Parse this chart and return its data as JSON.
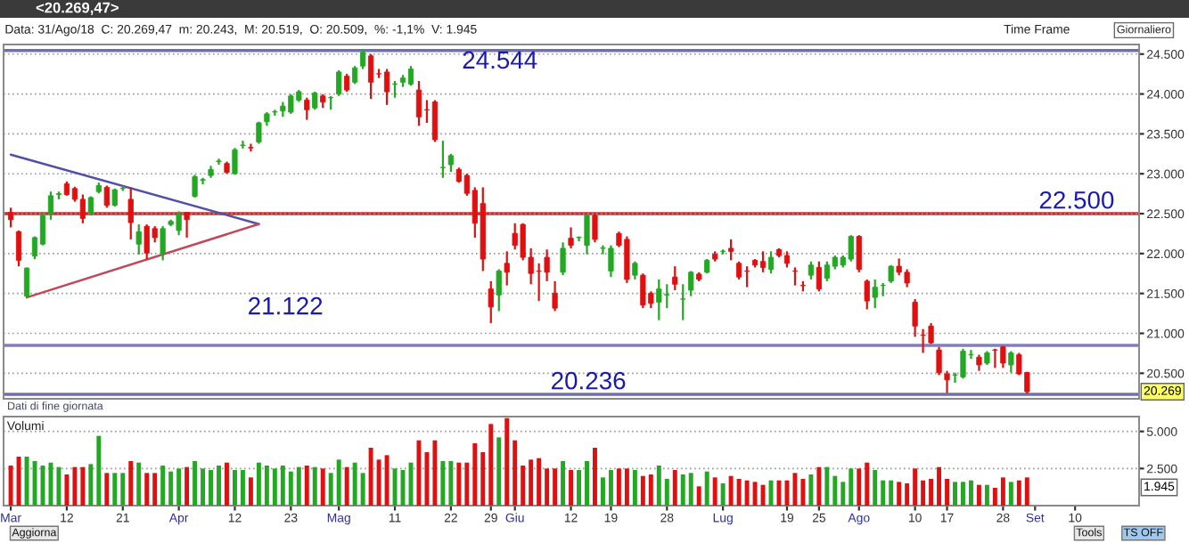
{
  "chart_data": [
    {
      "type": "candlestick",
      "title": "<20.269,47>",
      "subtitle": "Data: 31/Ago/18  C: 20.269,47  m: 20.243,  M: 20.519,  O: 20.509,  %: -1,1%  V: 1.945",
      "categories": [
        null,
        null,
        null,
        null,
        null,
        null,
        null,
        null,
        null,
        null,
        null,
        null,
        null,
        null,
        null,
        null,
        null,
        null,
        null,
        null,
        null,
        null,
        null,
        null,
        null,
        null,
        null,
        null,
        null,
        null,
        null,
        null,
        null,
        null,
        null,
        null,
        null,
        null,
        null,
        null,
        null,
        null,
        null,
        null,
        null,
        null,
        null,
        null,
        null,
        null,
        null,
        null,
        null,
        null,
        null,
        null,
        null,
        null,
        null,
        null,
        null,
        null,
        null,
        null,
        null,
        null,
        null,
        null,
        null,
        null,
        null,
        null,
        null,
        null,
        null,
        null,
        null,
        null,
        null,
        null,
        null,
        null,
        null,
        null,
        null,
        null,
        null,
        null,
        null,
        null,
        null,
        null,
        null,
        null,
        null,
        null,
        null,
        null,
        null,
        null,
        null,
        null,
        null,
        null,
        null,
        null,
        null,
        null,
        null,
        null,
        null,
        null,
        null,
        null,
        null,
        null,
        null,
        null,
        null,
        null,
        null,
        null,
        null,
        null,
        null,
        null,
        null,
        null,
        null,
        null,
        null,
        null,
        null,
        null,
        null,
        null,
        null,
        null,
        null,
        null,
        null,
        null
      ],
      "ohlc": [
        [
          22515,
          22575,
          22328,
          22425
        ],
        [
          22275,
          22290,
          21841,
          21916
        ],
        [
          21466,
          21826,
          21451,
          21818
        ],
        [
          21968,
          22215,
          21930,
          22200
        ],
        [
          22118,
          22515,
          22103,
          22477
        ],
        [
          22500,
          22777,
          22425,
          22725
        ],
        [
          22740,
          22777,
          22680,
          22750
        ],
        [
          22874,
          22904,
          22725,
          22740
        ],
        [
          22815,
          22837,
          22650,
          22680
        ],
        [
          22680,
          22740,
          22380,
          22440
        ],
        [
          22515,
          22717,
          22477,
          22702
        ],
        [
          22777,
          22889,
          22755,
          22852
        ],
        [
          22830,
          22852,
          22575,
          22605
        ],
        [
          22605,
          22815,
          22590,
          22800
        ],
        [
          22815,
          22845,
          22785,
          22820
        ],
        [
          22680,
          22830,
          22178,
          22388
        ],
        [
          22118,
          22365,
          21990,
          22275
        ],
        [
          22343,
          22365,
          21930,
          22006
        ],
        [
          22313,
          22343,
          22140,
          22200
        ],
        [
          22006,
          22343,
          21916,
          22313
        ],
        [
          22365,
          22425,
          22343,
          22403
        ],
        [
          22290,
          22530,
          22230,
          22492
        ],
        [
          22515,
          22515,
          22200,
          22425
        ],
        [
          22717,
          22987,
          22702,
          22964
        ],
        [
          22920,
          22950,
          22867,
          22927
        ],
        [
          22979,
          23099,
          22949,
          23054
        ],
        [
          23152,
          23189,
          23114,
          23160
        ],
        [
          23129,
          23152,
          23002,
          23017
        ],
        [
          23002,
          23324,
          22987,
          23301
        ],
        [
          23354,
          23414,
          23316,
          23360
        ],
        [
          23330,
          23376,
          23279,
          23324
        ],
        [
          23399,
          23653,
          23376,
          23638
        ],
        [
          23653,
          23773,
          23601,
          23751
        ],
        [
          23773,
          23803,
          23728,
          23778
        ],
        [
          23788,
          23900,
          23713,
          23848
        ],
        [
          23773,
          23998,
          23751,
          23975
        ],
        [
          23923,
          24050,
          23900,
          24028
        ],
        [
          23923,
          23953,
          23676,
          23803
        ],
        [
          23826,
          24028,
          23803,
          24013
        ],
        [
          23975,
          23998,
          23826,
          23900
        ],
        [
          23953,
          23975,
          23803,
          23955
        ],
        [
          23998,
          24297,
          23975,
          24275
        ],
        [
          24223,
          24253,
          24028,
          24050
        ],
        [
          24148,
          24350,
          24125,
          24327
        ],
        [
          24350,
          24552,
          24313,
          24522
        ],
        [
          24477,
          24500,
          23938,
          24148
        ],
        [
          24253,
          24313,
          24200,
          24252
        ],
        [
          24275,
          24313,
          23863,
          24028
        ],
        [
          24125,
          24163,
          23953,
          24126
        ],
        [
          24148,
          24238,
          24088,
          24200
        ],
        [
          24125,
          24350,
          24103,
          24313
        ],
        [
          24050,
          24163,
          23601,
          23713
        ],
        [
          23803,
          23923,
          23638,
          23800
        ],
        [
          23900,
          23923,
          23399,
          23428
        ],
        [
          23077,
          23414,
          22949,
          23080
        ],
        [
          23114,
          23249,
          23024,
          23227
        ],
        [
          23054,
          23077,
          22889,
          22904
        ],
        [
          22979,
          23002,
          22725,
          22755
        ],
        [
          22792,
          22830,
          22200,
          22380
        ],
        [
          22627,
          22830,
          21781,
          21931
        ],
        [
          21556,
          21654,
          21129,
          21331
        ],
        [
          21481,
          21803,
          21279,
          21781
        ],
        [
          21878,
          22028,
          21601,
          21766
        ],
        [
          22253,
          22380,
          22051,
          22103
        ],
        [
          22365,
          22380,
          21916,
          21953
        ],
        [
          21953,
          22066,
          21616,
          21751
        ],
        [
          21781,
          21878,
          21406,
          21780
        ],
        [
          21953,
          22051,
          21654,
          21766
        ],
        [
          21504,
          21654,
          21279,
          21316
        ],
        [
          21766,
          22140,
          21729,
          22066
        ],
        [
          22193,
          22328,
          22066,
          22103
        ],
        [
          22200,
          22215,
          22155,
          22205
        ],
        [
          22103,
          22492,
          21991,
          22477
        ],
        [
          22477,
          22492,
          22140,
          22178
        ],
        [
          22066,
          22103,
          21991,
          22070
        ],
        [
          21781,
          22103,
          21706,
          22066
        ],
        [
          22253,
          22275,
          22081,
          22103
        ],
        [
          22178,
          22215,
          21631,
          21676
        ],
        [
          21729,
          21901,
          21676,
          21878
        ],
        [
          21729,
          21751,
          21316,
          21354
        ],
        [
          21504,
          21526,
          21316,
          21376
        ],
        [
          21391,
          21676,
          21166,
          21556
        ],
        [
          21481,
          21616,
          21316,
          21486
        ],
        [
          21706,
          21841,
          21541,
          21616
        ],
        [
          21429,
          21616,
          21166,
          21431
        ],
        [
          21541,
          21781,
          21466,
          21766
        ],
        [
          21743,
          21766,
          21653,
          21676
        ],
        [
          21766,
          21931,
          21751,
          21916
        ],
        [
          21991,
          22028,
          21901,
          21931
        ],
        [
          22028,
          22051,
          21991,
          22030
        ],
        [
          22066,
          22178,
          21916,
          22028
        ],
        [
          21878,
          21901,
          21676,
          21706
        ],
        [
          21781,
          21841,
          21579,
          21780
        ],
        [
          21916,
          21931,
          21826,
          21856
        ],
        [
          21901,
          22028,
          21766,
          21826
        ],
        [
          21803,
          22028,
          21751,
          21953
        ],
        [
          22051,
          22066,
          21953,
          21976
        ],
        [
          21976,
          22028,
          21826,
          21878
        ],
        [
          21781,
          21826,
          21601,
          21780
        ],
        [
          21601,
          21654,
          21526,
          21598
        ],
        [
          21729,
          21901,
          21676,
          21856
        ],
        [
          21826,
          21901,
          21526,
          21556
        ],
        [
          21691,
          21901,
          21654,
          21856
        ],
        [
          21841,
          21976,
          21803,
          21953
        ],
        [
          21856,
          21976,
          21826,
          21953
        ],
        [
          21931,
          22230,
          21901,
          22215
        ],
        [
          22215,
          22230,
          21766,
          21803
        ],
        [
          21654,
          21676,
          21301,
          21406
        ],
        [
          21451,
          21676,
          21316,
          21578
        ],
        [
          21601,
          21631,
          21466,
          21603
        ],
        [
          21654,
          21856,
          21631,
          21841
        ],
        [
          21841,
          21938,
          21729,
          21766
        ],
        [
          21766,
          21803,
          21579,
          21631
        ],
        [
          21391,
          21429,
          20957,
          21092
        ],
        [
          20980,
          21054,
          20755,
          20977
        ],
        [
          21092,
          21129,
          20867,
          20882
        ],
        [
          20792,
          20830,
          20477,
          20507
        ],
        [
          20492,
          20530,
          20253,
          20418
        ],
        [
          20478,
          20507,
          20380,
          20480
        ],
        [
          20455,
          20807,
          20433,
          20777
        ],
        [
          20732,
          20792,
          20680,
          20735
        ],
        [
          20702,
          20732,
          20530,
          20605
        ],
        [
          20627,
          20777,
          20605,
          20755
        ],
        [
          20792,
          20807,
          20567,
          20790
        ],
        [
          20830,
          20845,
          20567,
          20627
        ],
        [
          20605,
          20777,
          20507,
          20755
        ],
        [
          20732,
          20755,
          20477,
          20492
        ],
        [
          20509,
          20519,
          20243,
          20269
        ],
        null,
        null,
        null,
        null,
        null,
        null,
        null,
        null,
        null,
        null,
        null,
        null,
        null,
        null
      ],
      "colors": [
        "#e01010",
        "#e01010",
        "#22a822",
        "#22a822",
        "#22a822",
        "#22a822",
        "#22a822",
        "#e01010",
        "#e01010",
        "#e01010",
        "#22a822",
        "#22a822",
        "#e01010",
        "#22a822",
        "#22a822",
        "#e01010",
        "#22a822",
        "#e01010",
        "#e01010",
        "#22a822",
        "#22a822",
        "#22a822",
        "#e01010",
        "#22a822",
        "#22a822",
        "#22a822",
        "#22a822",
        "#e01010",
        "#22a822",
        "#22a822",
        "#e01010",
        "#22a822",
        "#22a822",
        "#22a822",
        "#22a822",
        "#22a822",
        "#22a822",
        "#e01010",
        "#22a822",
        "#e01010",
        "#22a822",
        "#22a822",
        "#e01010",
        "#22a822",
        "#22a822",
        "#e01010",
        "#e01010",
        "#e01010",
        "#22a822",
        "#22a822",
        "#22a822",
        "#e01010",
        "#e01010",
        "#e01010",
        "#22a822",
        "#22a822",
        "#e01010",
        "#e01010",
        "#e01010",
        "#e01010",
        "#e01010",
        "#22a822",
        "#e01010",
        "#e01010",
        "#e01010",
        "#e01010",
        "#e01010",
        "#e01010",
        "#e01010",
        "#22a822",
        "#e01010",
        "#22a822",
        "#22a822",
        "#e01010",
        "#22a822",
        "#22a822",
        "#e01010",
        "#e01010",
        "#22a822",
        "#e01010",
        "#e01010",
        "#22a822",
        "#22a822",
        "#e01010",
        "#22a822",
        "#22a822",
        "#e01010",
        "#22a822",
        "#e01010",
        "#22a822",
        "#e01010",
        "#e01010",
        "#e01010",
        "#e01010",
        "#e01010",
        "#22a822",
        "#e01010",
        "#e01010",
        "#e01010",
        "#e01010",
        "#22a822",
        "#e01010",
        "#22a822",
        "#22a822",
        "#22a822",
        "#22a822",
        "#e01010",
        "#e01010",
        "#22a822",
        "#22a822",
        "#22a822",
        "#e01010",
        "#e01010",
        "#e01010",
        "#e01010",
        "#e01010",
        "#e01010",
        "#e01010",
        "#22a822",
        "#22a822",
        "#22a822",
        "#e01010",
        "#22a822",
        "#e01010",
        "#e01010",
        "#22a822",
        "#e01010",
        "#e01010",
        null,
        null,
        null,
        null,
        null,
        null,
        null,
        null,
        null,
        null,
        null,
        null,
        null,
        null
      ],
      "series": [
        {
          "type": "line",
          "color": "#5050a8",
          "values": [
            23240,
            null,
            null,
            null,
            null,
            null,
            null,
            null,
            null,
            null,
            null,
            null,
            null,
            null,
            null,
            null,
            null,
            null,
            null,
            null,
            null,
            null,
            null,
            null,
            null,
            null,
            null,
            null,
            null,
            null,
            null,
            22370,
            null,
            null,
            null,
            null,
            null,
            null,
            null,
            null,
            null,
            null,
            null,
            null,
            null,
            null,
            null,
            null,
            null,
            null,
            null,
            null,
            null,
            null,
            null,
            null,
            null,
            null,
            null,
            null,
            null,
            null,
            null,
            null,
            null,
            null,
            null,
            null,
            null,
            null,
            null,
            null,
            null,
            null,
            null,
            null,
            null,
            null,
            null,
            null,
            null,
            null,
            null,
            null,
            null,
            null,
            null,
            null,
            null,
            null,
            null,
            null,
            null,
            null,
            null,
            null,
            null,
            null,
            null,
            null,
            null,
            null,
            null,
            null,
            null,
            null,
            null,
            null,
            null,
            null,
            null,
            null,
            null,
            null,
            null,
            null,
            null,
            null,
            null,
            null,
            null,
            null,
            null,
            null,
            null,
            null,
            null,
            null,
            null,
            null,
            null,
            null,
            null,
            null,
            null,
            null,
            null,
            null,
            null,
            null,
            null,
            null
          ]
        },
        {
          "type": "line",
          "color": "#c04858",
          "values": [
            null,
            null,
            21450,
            null,
            null,
            null,
            null,
            null,
            null,
            null,
            null,
            null,
            null,
            null,
            null,
            null,
            null,
            null,
            null,
            null,
            null,
            null,
            null,
            null,
            null,
            null,
            null,
            null,
            null,
            null,
            null,
            22370,
            null,
            null,
            null,
            null,
            null,
            null,
            null,
            null,
            null,
            null,
            null,
            null,
            null,
            null,
            null,
            null,
            null,
            null,
            null,
            null,
            null,
            null,
            null,
            null,
            null,
            null,
            null,
            null,
            null,
            null,
            null,
            null,
            null,
            null,
            null,
            null,
            null,
            null,
            null,
            null,
            null,
            null,
            null,
            null,
            null,
            null,
            null,
            null,
            null,
            null,
            null,
            null,
            null,
            null,
            null,
            null,
            null,
            null,
            null,
            null,
            null,
            null,
            null,
            null,
            null,
            null,
            null,
            null,
            null,
            null,
            null,
            null,
            null,
            null,
            null,
            null,
            null,
            null,
            null,
            null,
            null,
            null,
            null,
            null,
            null,
            null,
            null,
            null,
            null,
            null,
            null,
            null,
            null,
            null,
            null,
            null,
            null,
            null,
            null,
            null,
            null,
            null,
            null,
            null,
            null,
            null,
            null,
            null,
            null,
            null
          ]
        }
      ],
      "ylim": [
        20180,
        24620
      ],
      "yticks": [
        {
          "value": 20500,
          "label": "20.500"
        },
        {
          "value": 21000,
          "label": "21.000"
        },
        {
          "value": 21500,
          "label": "21.500"
        },
        {
          "value": 22000,
          "label": "22.000"
        },
        {
          "value": 22500,
          "label": "22.500"
        },
        {
          "value": 23000,
          "label": "23.000"
        },
        {
          "value": 23500,
          "label": "23.500"
        },
        {
          "value": 24000,
          "label": "24.000"
        },
        {
          "value": 24500,
          "label": "24.500"
        }
      ],
      "grid": "y",
      "ref_lines": [
        {
          "axis": "y",
          "value": 24544,
          "label": "24.544",
          "color": "#7070b0"
        },
        {
          "axis": "y",
          "value": 22500,
          "label": "22.500",
          "color": "#c03030"
        },
        {
          "axis": "y",
          "value": 20850,
          "color": "#8080b8"
        },
        {
          "axis": "y",
          "value": 20236,
          "label": "20.236",
          "color": "#7070b0"
        }
      ],
      "annotations": [
        "21.122",
        {
          "text": "20.269",
          "y": 20269
        },
        "Time Frame",
        "Giornaliero",
        "Dati di fine giornata"
      ]
    },
    {
      "type": "bar",
      "title": "Volumi",
      "categories": [
        "Mar",
        null,
        null,
        null,
        null,
        null,
        null,
        "12",
        null,
        null,
        null,
        null,
        null,
        null,
        "21",
        null,
        null,
        null,
        null,
        null,
        null,
        "Apr",
        null,
        null,
        null,
        null,
        null,
        null,
        "12",
        null,
        null,
        null,
        null,
        null,
        null,
        "23",
        null,
        null,
        null,
        null,
        null,
        "Mag",
        null,
        null,
        null,
        null,
        null,
        null,
        "11",
        null,
        null,
        null,
        null,
        null,
        null,
        "22",
        null,
        null,
        null,
        null,
        "29",
        null,
        null,
        "Giu",
        null,
        null,
        null,
        null,
        null,
        null,
        "12",
        null,
        null,
        null,
        null,
        "19",
        null,
        null,
        null,
        null,
        null,
        null,
        "28",
        null,
        null,
        null,
        null,
        null,
        null,
        "Lug",
        null,
        null,
        null,
        null,
        null,
        null,
        null,
        "19",
        null,
        null,
        null,
        "25",
        null,
        null,
        null,
        null,
        "Ago",
        null,
        null,
        null,
        null,
        null,
        null,
        "10",
        null,
        null,
        null,
        "17",
        null,
        null,
        null,
        null,
        null,
        null,
        "28",
        null,
        null,
        null,
        "Set",
        null,
        null,
        null,
        null,
        "10",
        null,
        null,
        null,
        null,
        null,
        null,
        null,
        null
      ],
      "values": [
        2700,
        3300,
        3300,
        3000,
        2700,
        2900,
        2600,
        2100,
        2600,
        2600,
        2800,
        4700,
        2200,
        2200,
        2200,
        3000,
        2900,
        2200,
        2200,
        2700,
        2300,
        2500,
        2600,
        3000,
        2500,
        2400,
        2700,
        2900,
        2400,
        2400,
        1900,
        2900,
        2700,
        2500,
        2700,
        2300,
        2600,
        2700,
        2600,
        2500,
        2200,
        3100,
        2600,
        2900,
        2200,
        3900,
        3100,
        3400,
        2500,
        2400,
        2900,
        4400,
        3600,
        4400,
        3000,
        3000,
        2900,
        2900,
        4200,
        3600,
        5500,
        4600,
        5900,
        4400,
        2700,
        3100,
        3200,
        2500,
        2500,
        3000,
        2400,
        2400,
        3000,
        3900,
        1900,
        2400,
        2500,
        2500,
        2400,
        2000,
        2100,
        2700,
        1800,
        2400,
        2100,
        2200,
        1300,
        2300,
        1900,
        1500,
        2000,
        1800,
        1700,
        1600,
        1400,
        1700,
        1700,
        1700,
        2200,
        1800,
        2100,
        2600,
        2600,
        2000,
        1600,
        2500,
        2500,
        2900,
        2400,
        1700,
        1700,
        1600,
        1500,
        2500,
        1700,
        1800,
        2600,
        1800,
        1600,
        1600,
        1700,
        1400,
        1400,
        1200,
        1900,
        1600,
        1700,
        1900,
        null,
        null,
        null,
        null,
        null,
        null,
        null,
        null,
        null,
        null,
        null,
        null,
        null,
        null
      ],
      "colors": [
        "#e01010",
        "#e01010",
        "#22a822",
        "#22a822",
        "#22a822",
        "#22a822",
        "#22a822",
        "#e01010",
        "#e01010",
        "#e01010",
        "#22a822",
        "#22a822",
        "#e01010",
        "#22a822",
        "#22a822",
        "#e01010",
        "#22a822",
        "#e01010",
        "#e01010",
        "#22a822",
        "#22a822",
        "#22a822",
        "#e01010",
        "#22a822",
        "#22a822",
        "#22a822",
        "#22a822",
        "#e01010",
        "#22a822",
        "#22a822",
        "#e01010",
        "#22a822",
        "#22a822",
        "#22a822",
        "#22a822",
        "#22a822",
        "#22a822",
        "#e01010",
        "#22a822",
        "#e01010",
        "#22a822",
        "#22a822",
        "#e01010",
        "#22a822",
        "#22a822",
        "#e01010",
        "#e01010",
        "#e01010",
        "#22a822",
        "#22a822",
        "#22a822",
        "#e01010",
        "#e01010",
        "#e01010",
        "#22a822",
        "#22a822",
        "#e01010",
        "#e01010",
        "#e01010",
        "#e01010",
        "#e01010",
        "#22a822",
        "#e01010",
        "#e01010",
        "#e01010",
        "#e01010",
        "#e01010",
        "#e01010",
        "#e01010",
        "#22a822",
        "#e01010",
        "#22a822",
        "#22a822",
        "#e01010",
        "#22a822",
        "#22a822",
        "#e01010",
        "#e01010",
        "#22a822",
        "#e01010",
        "#e01010",
        "#22a822",
        "#22a822",
        "#e01010",
        "#22a822",
        "#22a822",
        "#e01010",
        "#22a822",
        "#e01010",
        "#22a822",
        "#e01010",
        "#e01010",
        "#e01010",
        "#e01010",
        "#e01010",
        "#22a822",
        "#e01010",
        "#e01010",
        "#e01010",
        "#e01010",
        "#22a822",
        "#e01010",
        "#22a822",
        "#22a822",
        "#22a822",
        "#22a822",
        "#e01010",
        "#e01010",
        "#22a822",
        "#22a822",
        "#22a822",
        "#e01010",
        "#e01010",
        "#e01010",
        "#e01010",
        "#e01010",
        "#e01010",
        "#e01010",
        "#22a822",
        "#22a822",
        "#22a822",
        "#e01010",
        "#22a822",
        "#e01010",
        "#e01010",
        "#22a822",
        "#e01010",
        "#e01010",
        null,
        null,
        null,
        null,
        null,
        null,
        null,
        null,
        null,
        null,
        null,
        null,
        null,
        null
      ],
      "ylim": [
        0,
        6000
      ],
      "yticks": [
        {
          "value": 2500,
          "label": "2.500"
        },
        {
          "value": 5000,
          "label": "5.000"
        }
      ],
      "grid": "y",
      "annotations": [
        "1.945",
        "Aggiorna",
        "Tools",
        "TS OFF"
      ]
    }
  ]
}
